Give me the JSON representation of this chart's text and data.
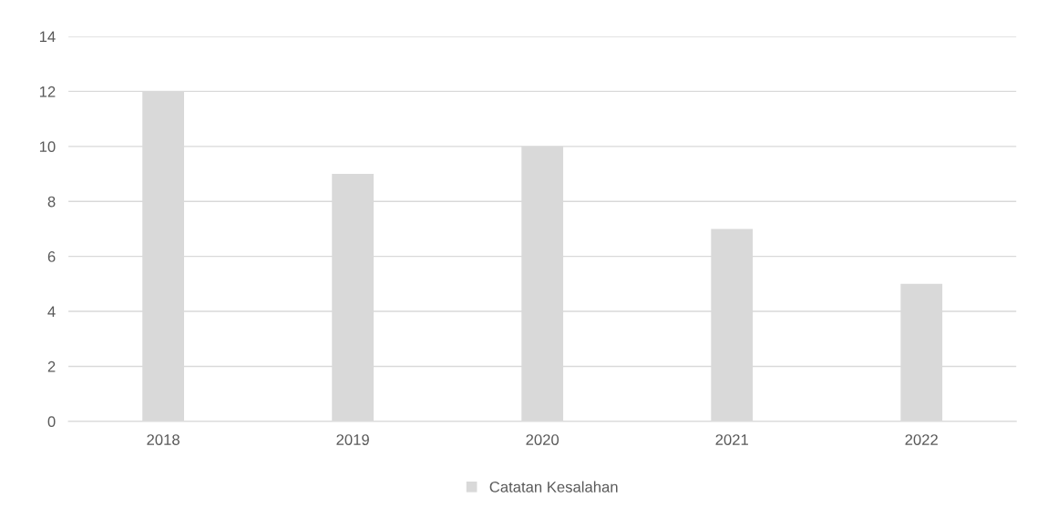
{
  "chart_data": {
    "type": "bar",
    "categories": [
      "2018",
      "2019",
      "2020",
      "2021",
      "2022"
    ],
    "series": [
      {
        "name": "Catatan Kesalahan",
        "color": "#d9d9d9",
        "values": [
          12,
          9,
          10,
          7,
          5
        ]
      }
    ],
    "ylim": [
      0,
      14
    ],
    "yticks": [
      0,
      2,
      4,
      6,
      8,
      10,
      12,
      14
    ],
    "grid": "y",
    "legend": "bottom"
  }
}
